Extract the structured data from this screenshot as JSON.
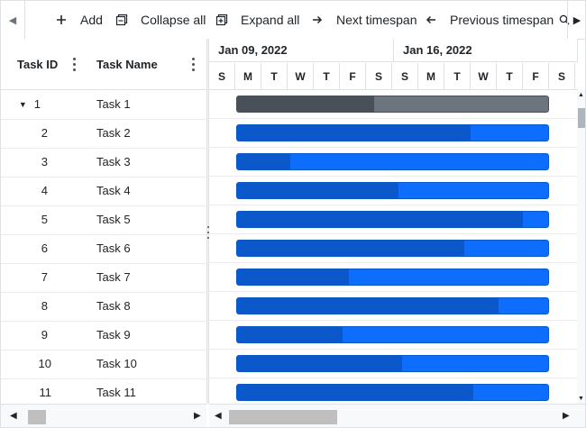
{
  "toolbar": {
    "items": [
      {
        "label": "Add",
        "icon": "plus-icon"
      },
      {
        "label": "Collapse all",
        "icon": "collapse-all-icon"
      },
      {
        "label": "Expand all",
        "icon": "expand-all-icon"
      },
      {
        "label": "Next timespan",
        "icon": "arrow-right-icon"
      },
      {
        "label": "Previous timespan",
        "icon": "arrow-left-icon"
      }
    ]
  },
  "grid": {
    "columns": [
      "Task ID",
      "Task Name"
    ],
    "rows": [
      {
        "id": "1",
        "name": "Task 1",
        "expanded": true
      },
      {
        "id": "2",
        "name": "Task 2"
      },
      {
        "id": "3",
        "name": "Task 3"
      },
      {
        "id": "4",
        "name": "Task 4"
      },
      {
        "id": "5",
        "name": "Task 5"
      },
      {
        "id": "6",
        "name": "Task 6"
      },
      {
        "id": "7",
        "name": "Task 7"
      },
      {
        "id": "8",
        "name": "Task 8"
      },
      {
        "id": "9",
        "name": "Task 9"
      },
      {
        "id": "10",
        "name": "Task 10"
      },
      {
        "id": "11",
        "name": "Task 11"
      }
    ]
  },
  "timeline": {
    "weeks": [
      "Jan 09, 2022",
      "Jan 16, 2022"
    ],
    "days": [
      "S",
      "M",
      "T",
      "W",
      "T",
      "F",
      "S",
      "S",
      "M",
      "T",
      "W",
      "T",
      "F",
      "S"
    ]
  },
  "tasks_progress": [
    0.44,
    0.75,
    0.17,
    0.52,
    0.92,
    0.73,
    0.36,
    0.84,
    0.34,
    0.53,
    0.76
  ],
  "colors": {
    "summary_bar": "#6c757d",
    "summary_progress": "#495057",
    "task_bar": "#0d6efd",
    "task_progress": "#0a58ca"
  }
}
